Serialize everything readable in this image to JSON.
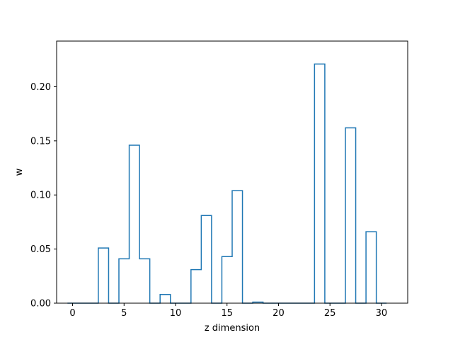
{
  "chart_data": {
    "type": "bar",
    "style": "step-outline histogram",
    "title": "",
    "xlabel": "z dimension",
    "ylabel": "w",
    "xlim": [
      -1.55,
      32.55
    ],
    "ylim": [
      0,
      0.2422
    ],
    "x_ticks": [
      0,
      5,
      10,
      15,
      20,
      25,
      30
    ],
    "x_tick_labels": [
      "0",
      "5",
      "10",
      "15",
      "20",
      "25",
      "30"
    ],
    "y_ticks": [
      0.0,
      0.05,
      0.1,
      0.15,
      0.2
    ],
    "y_tick_labels": [
      "0.00",
      "0.05",
      "0.10",
      "0.15",
      "0.20"
    ],
    "grid": false,
    "line_color": "#1f77b4",
    "x": [
      0,
      1,
      2,
      3,
      4,
      5,
      6,
      7,
      8,
      9,
      10,
      11,
      12,
      13,
      14,
      15,
      16,
      17,
      18,
      19,
      20,
      21,
      22,
      23,
      24,
      25,
      26,
      27,
      28,
      29,
      30
    ],
    "values": [
      0,
      0,
      0,
      0.051,
      0,
      0.041,
      0.146,
      0.041,
      0,
      0.008,
      0,
      0,
      0.031,
      0.081,
      0,
      0.043,
      0.104,
      0,
      0.001,
      0,
      0,
      0,
      0,
      0,
      0.221,
      0,
      0,
      0.162,
      0,
      0.066,
      0
    ]
  }
}
